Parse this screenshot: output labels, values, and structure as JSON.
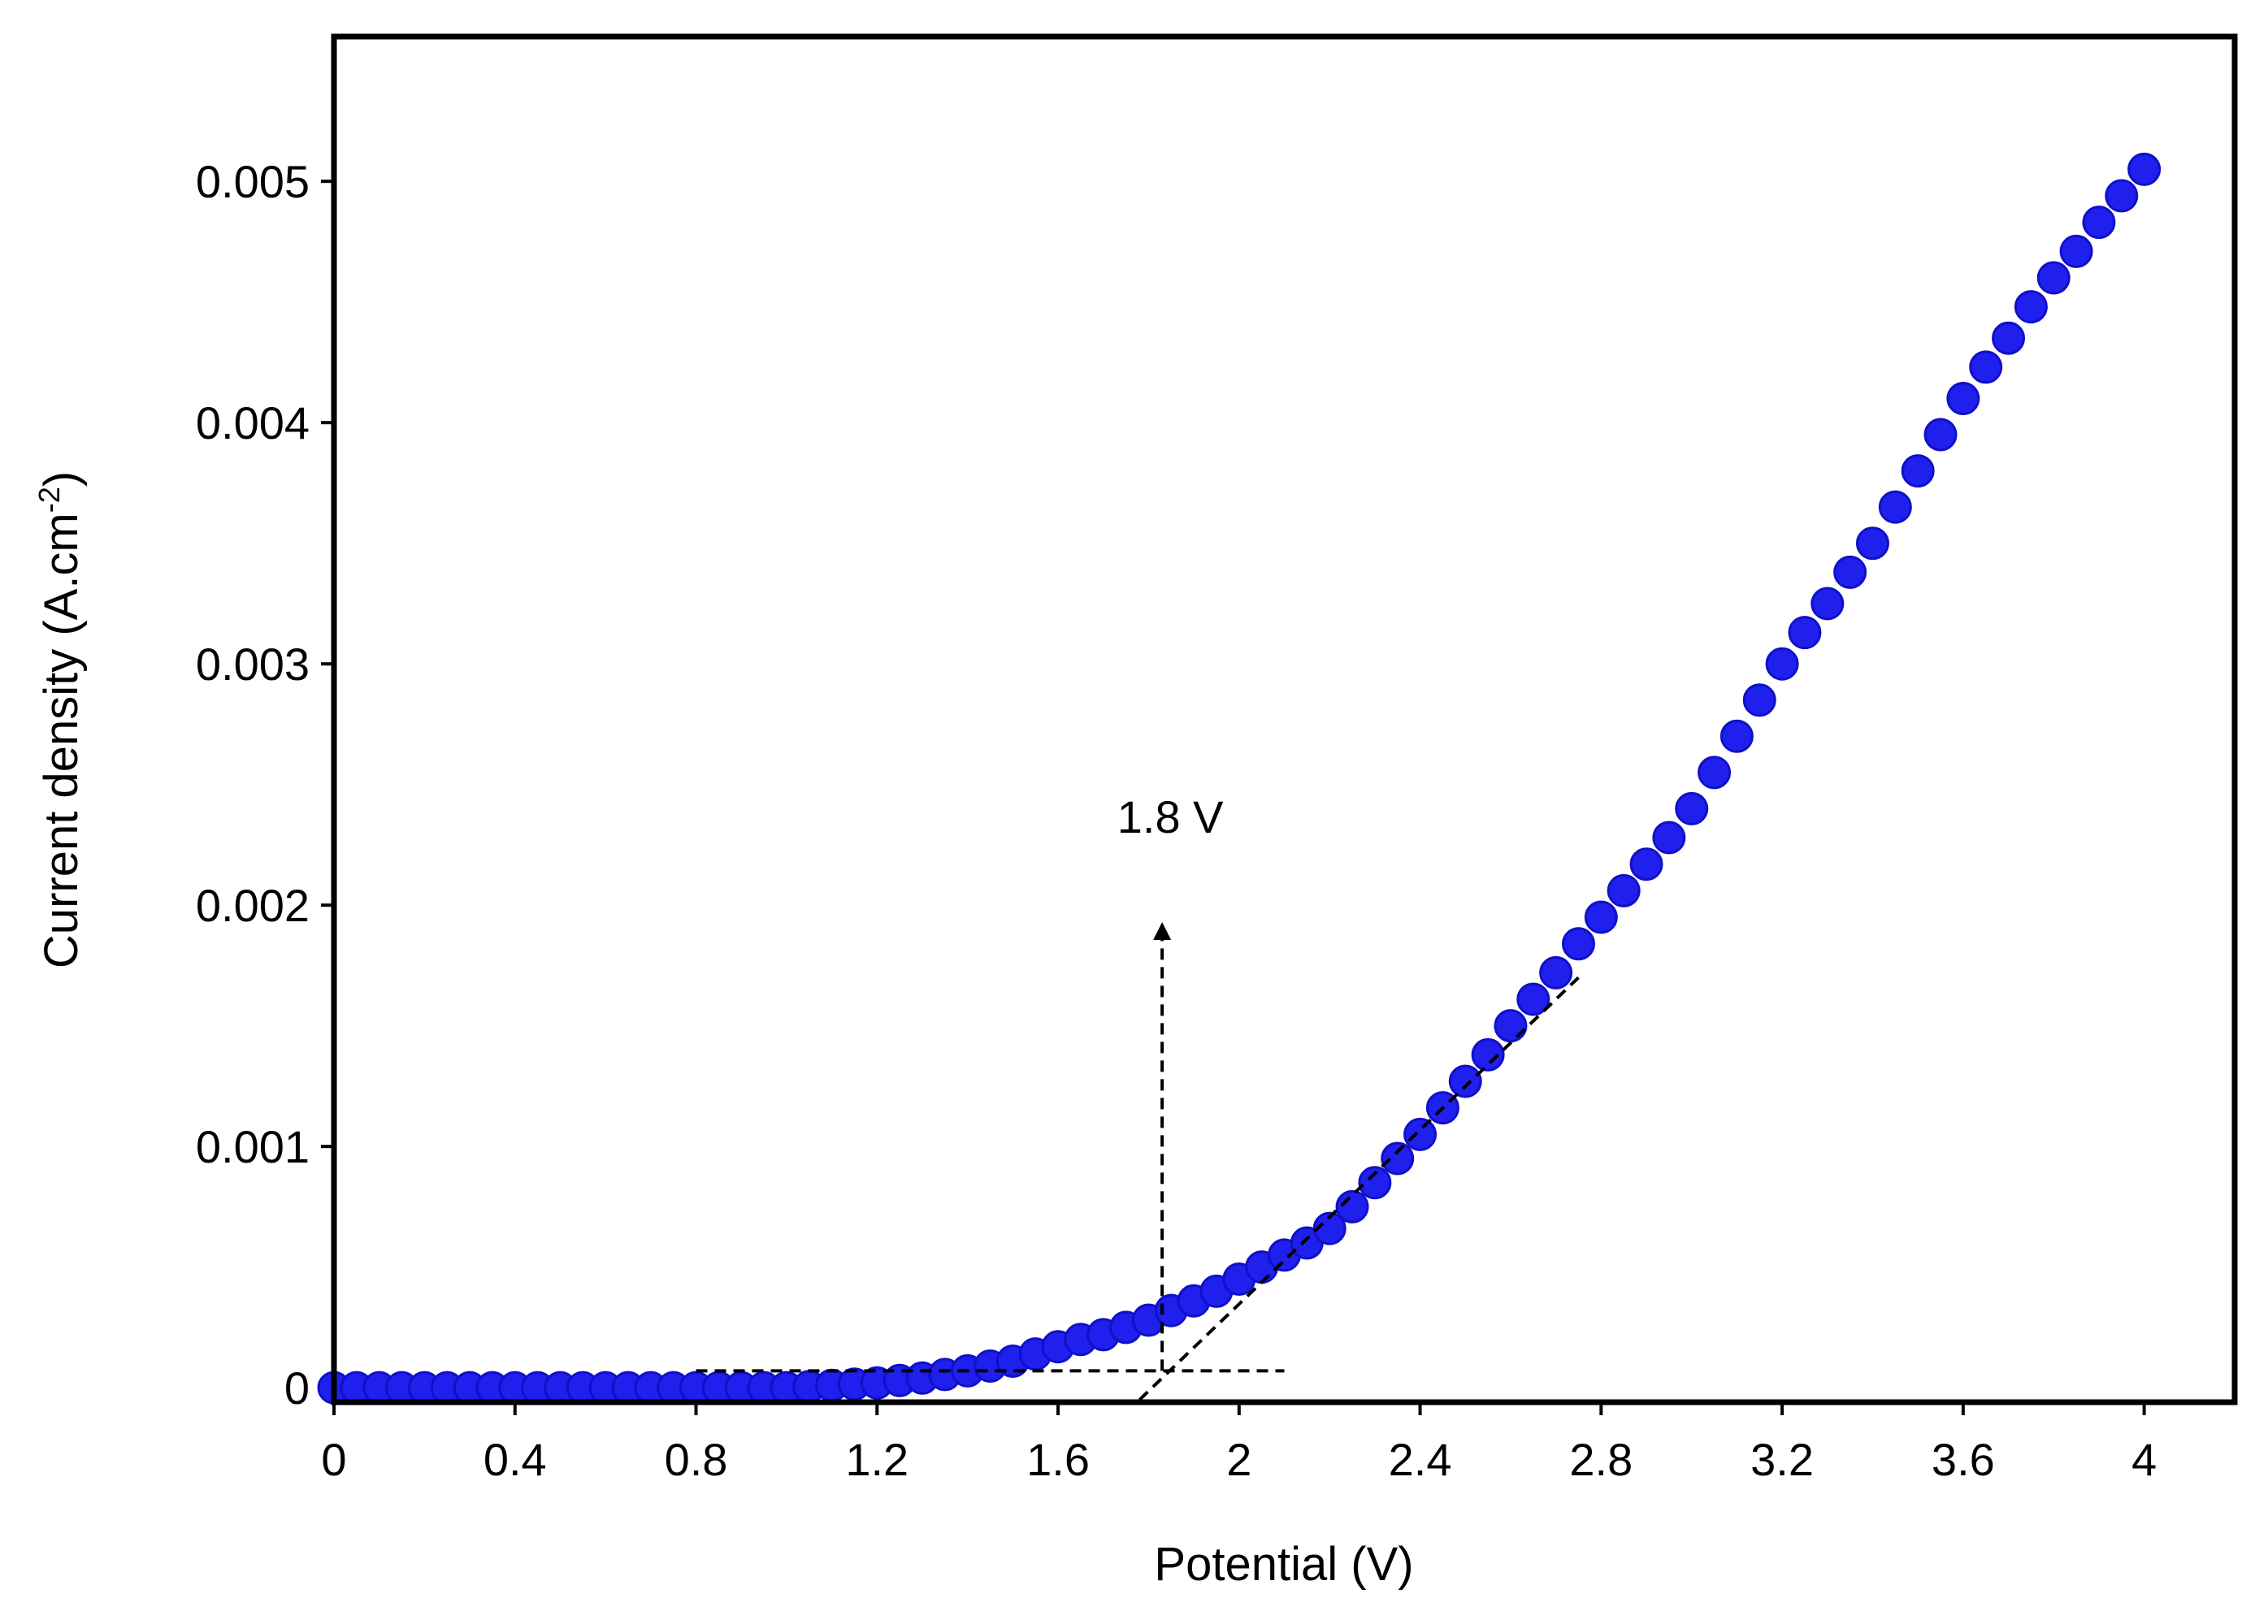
{
  "chart_data": {
    "type": "scatter",
    "xlabel": "Potential (V)",
    "ylabel": [
      "Current density (A.cm",
      "-2",
      ")"
    ],
    "annotation": "1.8 V",
    "color": "#1f1fee",
    "xlim": [
      0,
      4.2
    ],
    "ylim": [
      -6e-05,
      0.0056
    ],
    "xticks": [
      0,
      0.4,
      0.8,
      1.2,
      1.6,
      2,
      2.4,
      2.8,
      3.2,
      3.6,
      4
    ],
    "yticks": [
      0,
      0.001,
      0.002,
      0.003,
      0.004,
      0.005
    ],
    "x": [
      0,
      0.05,
      0.1,
      0.15,
      0.2,
      0.25,
      0.3,
      0.35,
      0.4,
      0.45,
      0.5,
      0.55,
      0.6,
      0.65,
      0.7,
      0.75,
      0.8,
      0.85,
      0.9,
      0.95,
      1.0,
      1.05,
      1.1,
      1.15,
      1.2,
      1.25,
      1.3,
      1.35,
      1.4,
      1.45,
      1.5,
      1.55,
      1.6,
      1.65,
      1.7,
      1.75,
      1.8,
      1.85,
      1.9,
      1.95,
      2.0,
      2.05,
      2.1,
      2.15,
      2.2,
      2.25,
      2.3,
      2.35,
      2.4,
      2.45,
      2.5,
      2.55,
      2.6,
      2.65,
      2.7,
      2.75,
      2.8,
      2.85,
      2.9,
      2.95,
      3.0,
      3.05,
      3.1,
      3.15,
      3.2,
      3.25,
      3.3,
      3.35,
      3.4,
      3.45,
      3.5,
      3.55,
      3.6,
      3.65,
      3.7,
      3.75,
      3.8,
      3.85,
      3.9,
      3.95,
      4.0
    ],
    "values": [
      0,
      0,
      0,
      0,
      0,
      0,
      0,
      0,
      0,
      0,
      0,
      0,
      0,
      0,
      0,
      0,
      0,
      0,
      0,
      0,
      0,
      5e-06,
      1e-05,
      1.5e-05,
      2e-05,
      3e-05,
      4e-05,
      5.5e-05,
      7e-05,
      9e-05,
      0.00011,
      0.00014,
      0.00017,
      0.0002,
      0.00022,
      0.00025,
      0.00028,
      0.00032,
      0.00036,
      0.0004,
      0.00045,
      0.0005,
      0.00055,
      0.0006,
      0.00066,
      0.00075,
      0.00085,
      0.00095,
      0.00105,
      0.00116,
      0.00127,
      0.00138,
      0.0015,
      0.00161,
      0.00172,
      0.00184,
      0.00195,
      0.00206,
      0.00217,
      0.00228,
      0.0024,
      0.00255,
      0.0027,
      0.00285,
      0.003,
      0.00313,
      0.00325,
      0.00338,
      0.0035,
      0.00365,
      0.0038,
      0.00395,
      0.0041,
      0.00423,
      0.00435,
      0.00448,
      0.0046,
      0.00471,
      0.00483,
      0.00494,
      0.00505
    ]
  }
}
